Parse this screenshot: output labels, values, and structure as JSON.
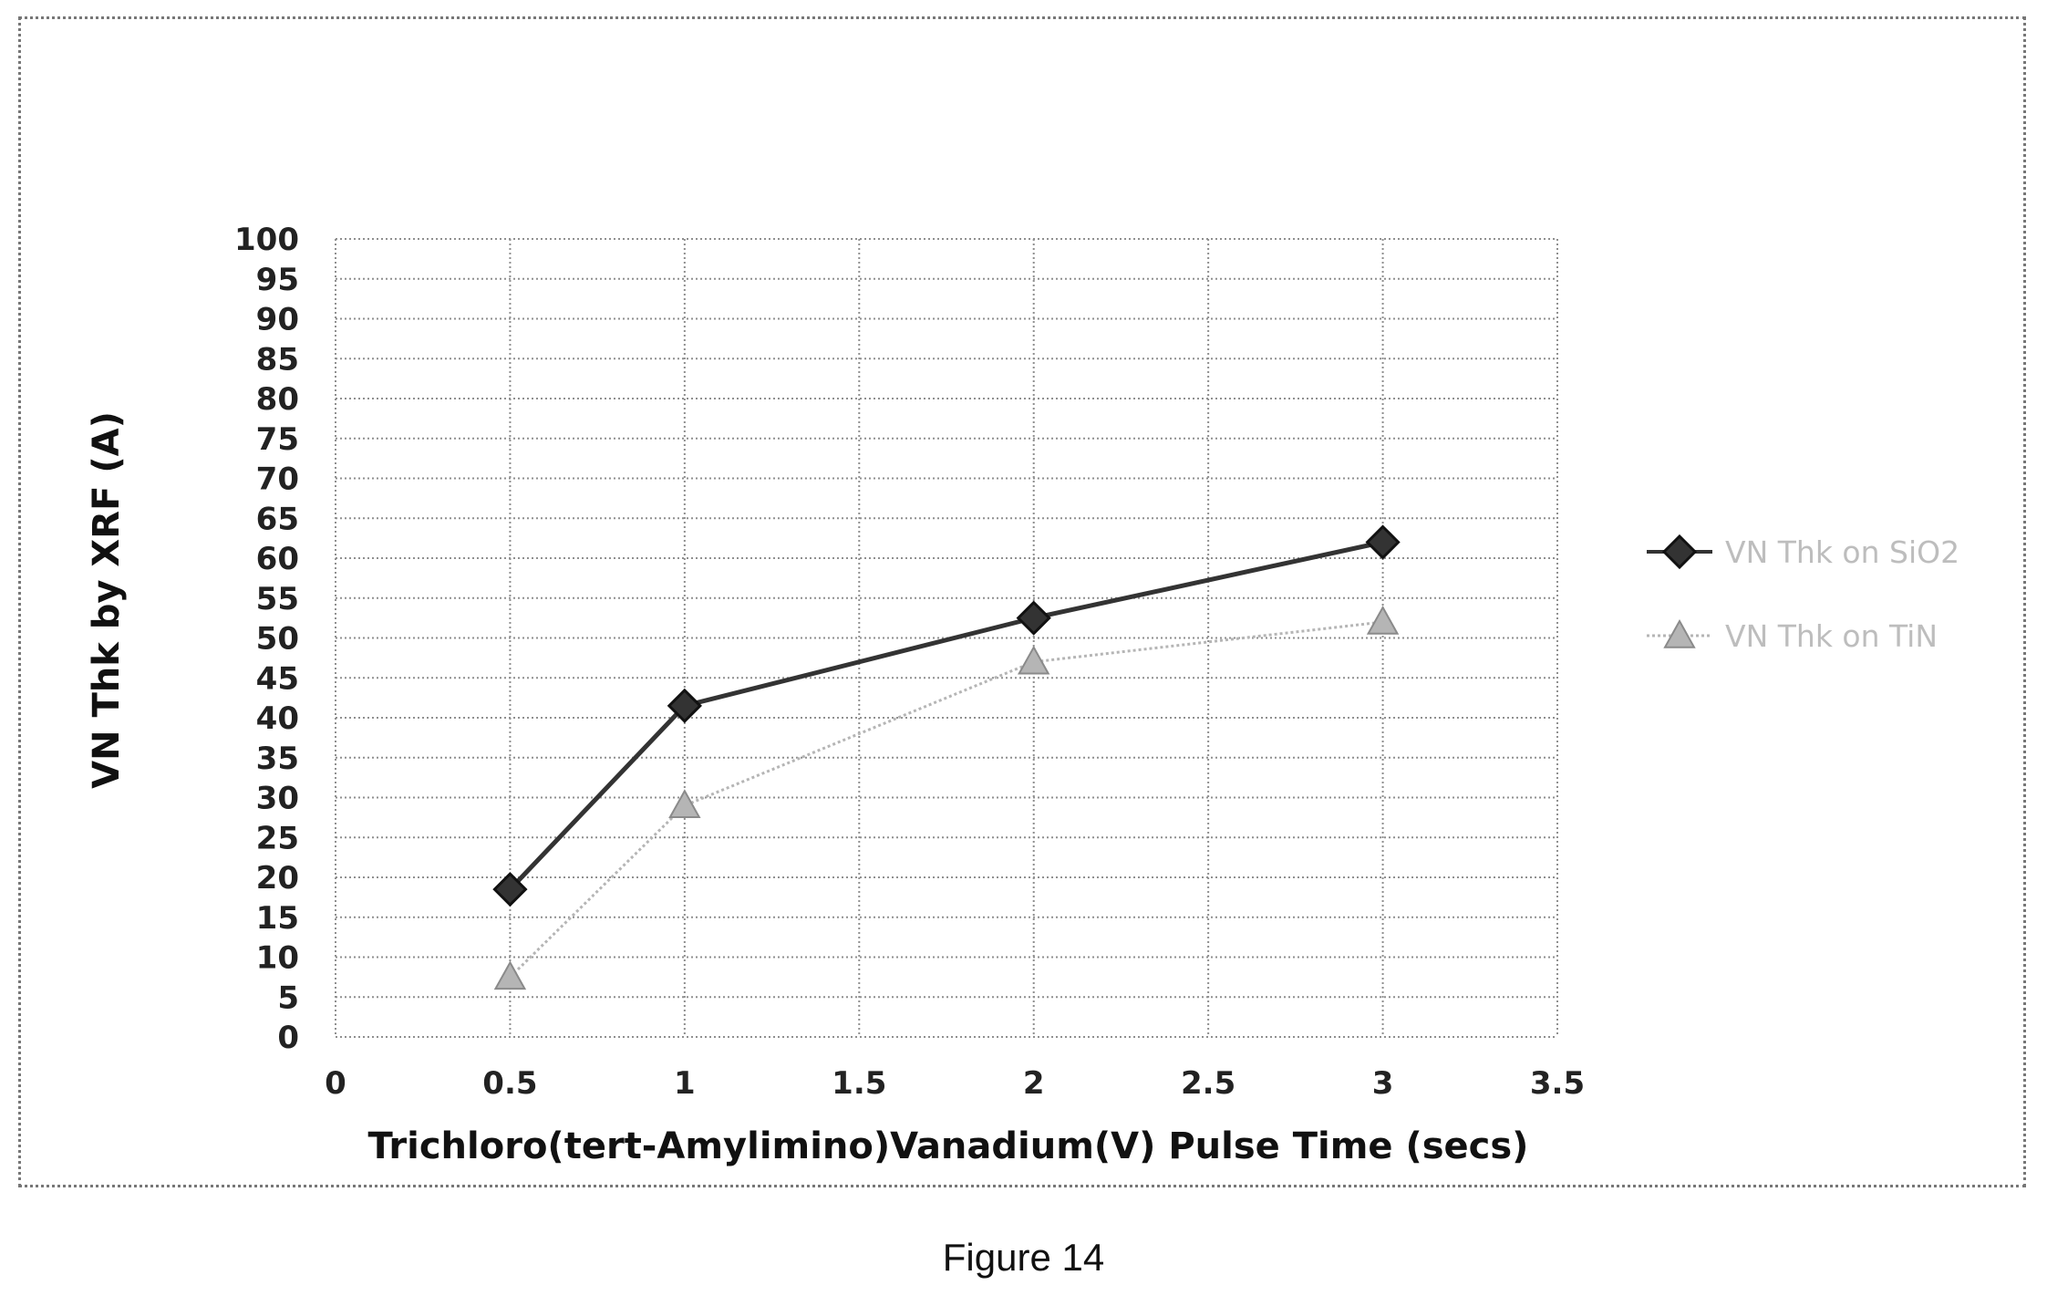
{
  "figure_caption": "Figure 14",
  "chart_data": {
    "type": "line",
    "xlabel": "Trichloro(tert-Amylimino)Vanadium(V)  Pulse Time (secs)",
    "ylabel": "VN Thk by XRF (A)",
    "xlim": [
      0,
      3.5
    ],
    "ylim": [
      0,
      100
    ],
    "x_ticks": [
      "0",
      "0.5",
      "1",
      "1.5",
      "2",
      "2.5",
      "3",
      "3.5"
    ],
    "y_ticks": [
      "0",
      "5",
      "10",
      "15",
      "20",
      "25",
      "30",
      "35",
      "40",
      "45",
      "50",
      "55",
      "60",
      "65",
      "70",
      "75",
      "80",
      "85",
      "90",
      "95",
      "100"
    ],
    "grid": true,
    "legend_position": "right",
    "series": [
      {
        "name": "VN Thk on SiO2",
        "marker": "diamond",
        "color": "#333333",
        "x": [
          0.5,
          1,
          2,
          3
        ],
        "y": [
          18.5,
          41.5,
          52.5,
          62
        ]
      },
      {
        "name": "VN Thk on TiN",
        "marker": "triangle",
        "color": "#b5b5b5",
        "x": [
          0.5,
          1,
          2,
          3
        ],
        "y": [
          7.5,
          29,
          47,
          52
        ]
      }
    ]
  }
}
